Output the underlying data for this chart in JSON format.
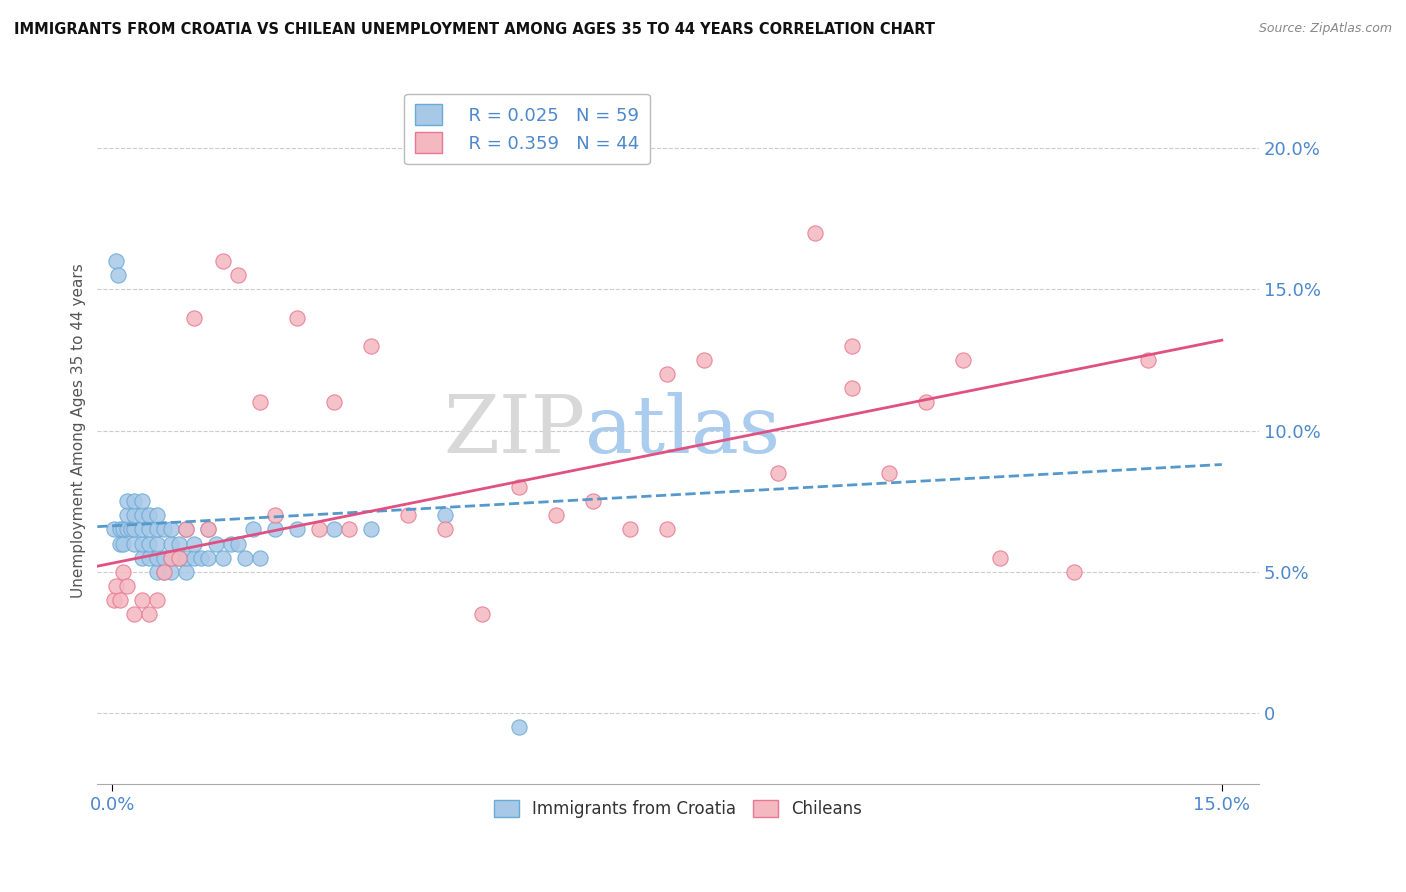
{
  "title": "IMMIGRANTS FROM CROATIA VS CHILEAN UNEMPLOYMENT AMONG AGES 35 TO 44 YEARS CORRELATION CHART",
  "source": "Source: ZipAtlas.com",
  "ylabel": "Unemployment Among Ages 35 to 44 years",
  "xlim": [
    -0.002,
    0.155
  ],
  "ylim": [
    -0.025,
    0.225
  ],
  "yticks": [
    0.0,
    0.05,
    0.1,
    0.15,
    0.2
  ],
  "xtick_positions": [
    0.0,
    0.15
  ],
  "xtick_labels": [
    "0.0%",
    "15.0%"
  ],
  "blue_R": 0.025,
  "blue_N": 59,
  "pink_R": 0.359,
  "pink_N": 44,
  "blue_color": "#a8c8e8",
  "blue_edge_color": "#6aaad4",
  "pink_color": "#f4b8c0",
  "pink_edge_color": "#e87890",
  "blue_line_color": "#5599cc",
  "pink_line_color": "#e05080",
  "watermark_zip": "ZIP",
  "watermark_atlas": "atlas",
  "blue_trend_start": 0.066,
  "blue_trend_end": 0.088,
  "pink_trend_start": 0.052,
  "pink_trend_end": 0.132,
  "blue_scatter_x": [
    0.0003,
    0.0005,
    0.0008,
    0.001,
    0.001,
    0.0015,
    0.0015,
    0.002,
    0.002,
    0.002,
    0.0025,
    0.003,
    0.003,
    0.003,
    0.003,
    0.004,
    0.004,
    0.004,
    0.004,
    0.004,
    0.005,
    0.005,
    0.005,
    0.005,
    0.006,
    0.006,
    0.006,
    0.006,
    0.006,
    0.007,
    0.007,
    0.007,
    0.008,
    0.008,
    0.008,
    0.008,
    0.009,
    0.009,
    0.01,
    0.01,
    0.01,
    0.011,
    0.011,
    0.012,
    0.013,
    0.013,
    0.014,
    0.015,
    0.016,
    0.017,
    0.018,
    0.019,
    0.02,
    0.022,
    0.025,
    0.03,
    0.035,
    0.045,
    0.055
  ],
  "blue_scatter_y": [
    0.065,
    0.16,
    0.155,
    0.06,
    0.065,
    0.06,
    0.065,
    0.065,
    0.07,
    0.075,
    0.065,
    0.06,
    0.065,
    0.07,
    0.075,
    0.055,
    0.06,
    0.065,
    0.07,
    0.075,
    0.055,
    0.06,
    0.065,
    0.07,
    0.05,
    0.055,
    0.06,
    0.065,
    0.07,
    0.05,
    0.055,
    0.065,
    0.05,
    0.055,
    0.06,
    0.065,
    0.055,
    0.06,
    0.05,
    0.055,
    0.065,
    0.055,
    0.06,
    0.055,
    0.055,
    0.065,
    0.06,
    0.055,
    0.06,
    0.06,
    0.055,
    0.065,
    0.055,
    0.065,
    0.065,
    0.065,
    0.065,
    0.07,
    -0.005
  ],
  "pink_scatter_x": [
    0.0003,
    0.0005,
    0.001,
    0.0015,
    0.002,
    0.003,
    0.004,
    0.005,
    0.006,
    0.007,
    0.008,
    0.009,
    0.01,
    0.011,
    0.013,
    0.015,
    0.017,
    0.02,
    0.022,
    0.025,
    0.028,
    0.03,
    0.032,
    0.035,
    0.04,
    0.045,
    0.05,
    0.055,
    0.06,
    0.065,
    0.07,
    0.075,
    0.075,
    0.08,
    0.09,
    0.095,
    0.1,
    0.1,
    0.105,
    0.11,
    0.115,
    0.12,
    0.13,
    0.14
  ],
  "pink_scatter_y": [
    0.04,
    0.045,
    0.04,
    0.05,
    0.045,
    0.035,
    0.04,
    0.035,
    0.04,
    0.05,
    0.055,
    0.055,
    0.065,
    0.14,
    0.065,
    0.16,
    0.155,
    0.11,
    0.07,
    0.14,
    0.065,
    0.11,
    0.065,
    0.13,
    0.07,
    0.065,
    0.035,
    0.08,
    0.07,
    0.075,
    0.065,
    0.12,
    0.065,
    0.125,
    0.085,
    0.17,
    0.13,
    0.115,
    0.085,
    0.11,
    0.125,
    0.055,
    0.05,
    0.125
  ]
}
